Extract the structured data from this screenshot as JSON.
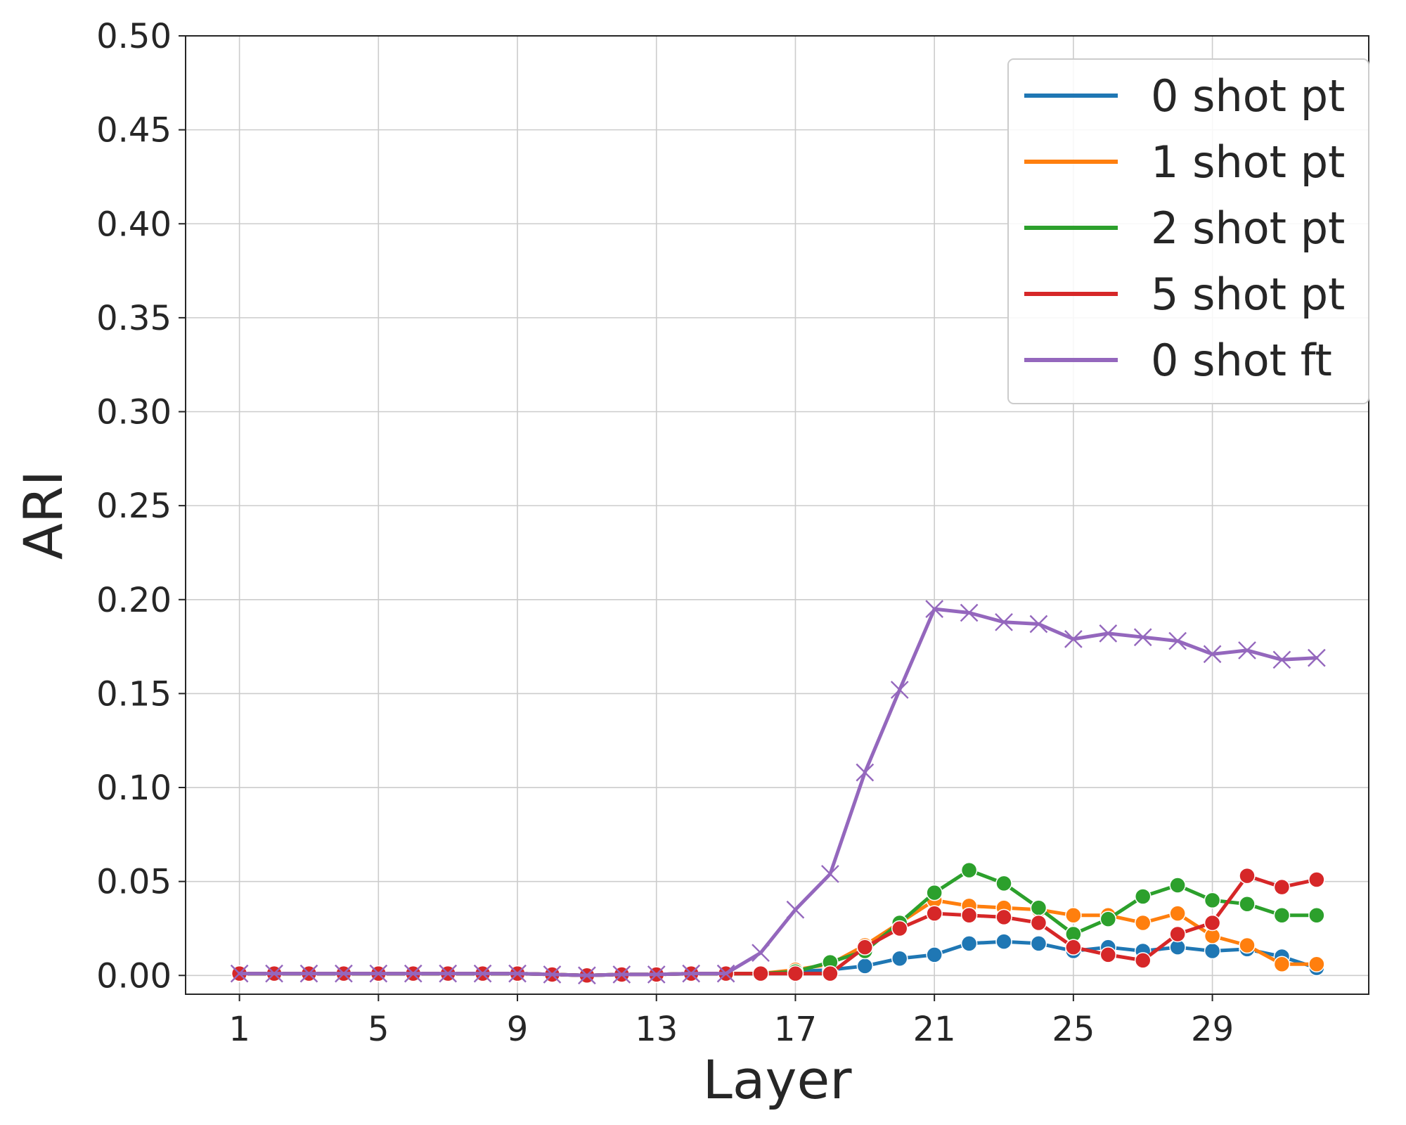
{
  "chart_data": {
    "type": "line",
    "xlabel": "Layer",
    "ylabel": "ARI",
    "xlim": [
      -0.55,
      33.5
    ],
    "ylim": [
      -0.01,
      0.5
    ],
    "x_ticks": [
      "1",
      "5",
      "9",
      "13",
      "17",
      "21",
      "25",
      "29"
    ],
    "y_ticks": [
      "0.00",
      "0.05",
      "0.10",
      "0.15",
      "0.20",
      "0.25",
      "0.30",
      "0.35",
      "0.40",
      "0.45",
      "0.50"
    ],
    "grid": true,
    "legend_position": "top-right",
    "x": [
      1,
      2,
      3,
      4,
      5,
      6,
      7,
      8,
      9,
      10,
      11,
      12,
      13,
      14,
      15,
      16,
      17,
      18,
      19,
      20,
      21,
      22,
      23,
      24,
      25,
      26,
      27,
      28,
      29,
      30,
      31,
      32
    ],
    "series": [
      {
        "name": "0 shot pt",
        "color": "#1f77b4",
        "marker": "circle",
        "values": [
          0.001,
          0.001,
          0.001,
          0.001,
          0.001,
          0.001,
          0.001,
          0.001,
          0.001,
          0.0005,
          0.0,
          0.0005,
          0.0005,
          0.001,
          0.001,
          0.001,
          0.002,
          0.003,
          0.005,
          0.009,
          0.011,
          0.017,
          0.018,
          0.017,
          0.013,
          0.015,
          0.013,
          0.015,
          0.013,
          0.014,
          0.01,
          0.004
        ]
      },
      {
        "name": "1 shot pt",
        "color": "#ff7f0e",
        "marker": "circle",
        "values": [
          0.001,
          0.001,
          0.001,
          0.001,
          0.001,
          0.001,
          0.001,
          0.001,
          0.001,
          0.0005,
          0.0,
          0.0005,
          0.0005,
          0.001,
          0.001,
          0.001,
          0.003,
          0.006,
          0.016,
          0.028,
          0.04,
          0.037,
          0.036,
          0.035,
          0.032,
          0.032,
          0.028,
          0.033,
          0.021,
          0.016,
          0.006,
          0.006
        ]
      },
      {
        "name": "2 shot pt",
        "color": "#2ca02c",
        "marker": "circle",
        "values": [
          0.001,
          0.001,
          0.001,
          0.001,
          0.001,
          0.001,
          0.001,
          0.001,
          0.001,
          0.0005,
          0.0,
          0.0005,
          0.0005,
          0.001,
          0.001,
          0.001,
          0.002,
          0.007,
          0.013,
          0.028,
          0.044,
          0.056,
          0.049,
          0.036,
          0.022,
          0.03,
          0.042,
          0.048,
          0.04,
          0.038,
          0.032,
          0.032
        ]
      },
      {
        "name": "5 shot pt",
        "color": "#d62728",
        "marker": "circle",
        "values": [
          0.001,
          0.001,
          0.001,
          0.001,
          0.001,
          0.001,
          0.001,
          0.001,
          0.001,
          0.0005,
          0.0,
          0.0005,
          0.0005,
          0.001,
          0.001,
          0.001,
          0.001,
          0.001,
          0.015,
          0.025,
          0.033,
          0.032,
          0.031,
          0.028,
          0.015,
          0.011,
          0.008,
          0.022,
          0.028,
          0.053,
          0.047,
          0.051
        ]
      },
      {
        "name": "0 shot ft",
        "color": "#9467bd",
        "marker": "x",
        "values": [
          0.001,
          0.001,
          0.001,
          0.001,
          0.001,
          0.001,
          0.001,
          0.001,
          0.001,
          0.0005,
          0.0,
          0.0005,
          0.0005,
          0.001,
          0.001,
          0.012,
          0.035,
          0.054,
          0.108,
          0.152,
          0.195,
          0.193,
          0.188,
          0.187,
          0.179,
          0.182,
          0.18,
          0.178,
          0.171,
          0.173,
          0.168,
          0.169
        ]
      }
    ]
  },
  "legend": {
    "items": [
      "0 shot pt",
      "1 shot pt",
      "2 shot pt",
      "5 shot pt",
      "0 shot ft"
    ]
  }
}
